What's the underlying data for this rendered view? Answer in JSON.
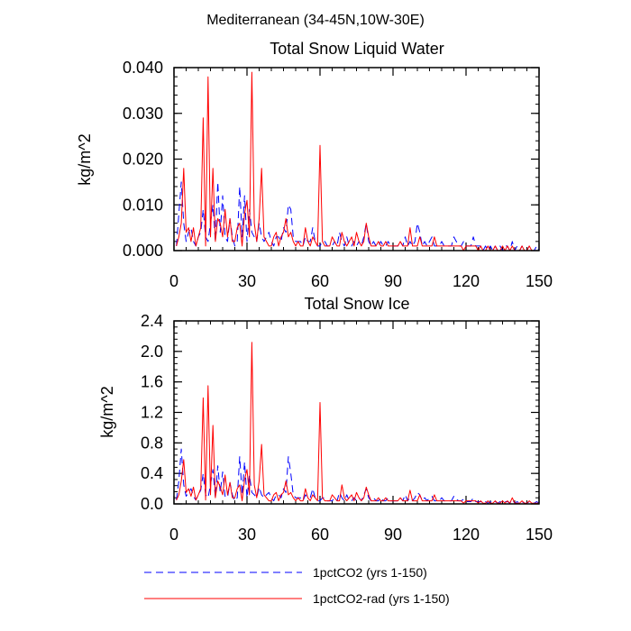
{
  "figure": {
    "supertitle": "Mediterranean (34-45N,10W-30E)"
  },
  "legend": {
    "items": [
      {
        "label": "1pctCO2 (yrs 1-150)",
        "color": "#0000ff",
        "style": "dashed"
      },
      {
        "label": "1pctCO2-rad (yrs 1-150)",
        "color": "#ff0000",
        "style": "solid"
      }
    ]
  },
  "chart_data": [
    {
      "type": "line",
      "title": "Total Snow Liquid Water",
      "xlabel": "",
      "ylabel": "kg/m^2",
      "xlim": [
        0,
        150
      ],
      "ylim": [
        0,
        0.04
      ],
      "xticks": [
        0,
        30,
        60,
        90,
        120,
        150
      ],
      "xtick_labels": [
        "0",
        "30",
        "60",
        "90",
        "120",
        "150"
      ],
      "yticks": [
        0,
        0.01,
        0.02,
        0.03,
        0.04
      ],
      "ytick_labels": [
        "0.000",
        "0.010",
        "0.020",
        "0.030",
        "0.040"
      ],
      "grid": false,
      "x": [
        1,
        2,
        3,
        4,
        5,
        6,
        7,
        8,
        9,
        10,
        11,
        12,
        13,
        14,
        15,
        16,
        17,
        18,
        19,
        20,
        21,
        22,
        23,
        24,
        25,
        26,
        27,
        28,
        29,
        30,
        31,
        32,
        33,
        34,
        35,
        36,
        37,
        38,
        39,
        40,
        41,
        42,
        43,
        44,
        45,
        46,
        47,
        48,
        49,
        50,
        51,
        52,
        53,
        54,
        55,
        56,
        57,
        58,
        59,
        60,
        61,
        62,
        63,
        64,
        65,
        66,
        67,
        68,
        69,
        70,
        71,
        72,
        73,
        74,
        75,
        76,
        77,
        78,
        79,
        80,
        81,
        82,
        83,
        84,
        85,
        86,
        87,
        88,
        89,
        90,
        91,
        92,
        93,
        94,
        95,
        96,
        97,
        98,
        99,
        100,
        101,
        102,
        103,
        104,
        105,
        106,
        107,
        108,
        109,
        110,
        111,
        112,
        113,
        114,
        115,
        116,
        117,
        118,
        119,
        120,
        121,
        122,
        123,
        124,
        125,
        126,
        127,
        128,
        129,
        130,
        131,
        132,
        133,
        134,
        135,
        136,
        137,
        138,
        139,
        140,
        141,
        142,
        143,
        144,
        145,
        146,
        147,
        148,
        149,
        150
      ],
      "series": [
        {
          "name": "1pctCO2 (yrs 1-150)",
          "color": "#0000ff",
          "dash": "8,5",
          "values": [
            0.001,
            0.008,
            0.015,
            0.006,
            0.002,
            0.004,
            0.005,
            0.002,
            0.001,
            0.003,
            0.004,
            0.009,
            0.003,
            0.002,
            0.006,
            0.01,
            0.002,
            0.015,
            0.004,
            0.012,
            0.003,
            0.002,
            0.007,
            0.003,
            0.001,
            0.002,
            0.014,
            0.003,
            0.012,
            0.002,
            0.009,
            0.004,
            0.003,
            0.002,
            0.006,
            0.003,
            0.002,
            0.003,
            0.004,
            0.002,
            0.001,
            0.003,
            0.003,
            0.002,
            0.005,
            0.004,
            0.01,
            0.009,
            0.003,
            0.002,
            0.002,
            0.002,
            0.001,
            0.003,
            0.002,
            0.002,
            0.005,
            0.002,
            0.001,
            0.001,
            0.002,
            0.002,
            0.001,
            0.001,
            0.001,
            0.002,
            0.001,
            0.004,
            0.002,
            0.001,
            0.003,
            0.001,
            0.001,
            0.002,
            0.001,
            0.002,
            0.001,
            0.003,
            0.006,
            0.002,
            0.001,
            0.002,
            0.001,
            0.001,
            0.002,
            0.001,
            0.001,
            0.002,
            0.001,
            0.001,
            0.001,
            0.001,
            0.002,
            0.001,
            0.003,
            0.001,
            0.002,
            0.001,
            0.002,
            0.006,
            0.004,
            0.001,
            0.002,
            0.001,
            0.002,
            0.003,
            0.001,
            0.001,
            0.001,
            0.002,
            0.001,
            0.001,
            0.001,
            0.001,
            0.003,
            0.002,
            0.001,
            0.001,
            0.002,
            0.001,
            0.001,
            0.001,
            0.003,
            0.001,
            0.001,
            0.001,
            0.0,
            0.001,
            0.0,
            0.001,
            0.0,
            0.001,
            0.0,
            0.001,
            0.0,
            0.001,
            0.001,
            0.0,
            0.002,
            0.0,
            0.001,
            0.0,
            0.001,
            0.0,
            0.0,
            0.001,
            0.0,
            0.0,
            0.001,
            0.0
          ]
        },
        {
          "name": "1pctCO2-rad (yrs 1-150)",
          "color": "#ff0000",
          "dash": "",
          "values": [
            0.001,
            0.003,
            0.006,
            0.018,
            0.004,
            0.005,
            0.002,
            0.005,
            0.001,
            0.003,
            0.005,
            0.029,
            0.001,
            0.038,
            0.003,
            0.018,
            0.002,
            0.007,
            0.006,
            0.003,
            0.009,
            0.003,
            0.007,
            0.002,
            0.002,
            0.005,
            0.006,
            0.001,
            0.008,
            0.011,
            0.003,
            0.039,
            0.006,
            0.002,
            0.007,
            0.018,
            0.003,
            0.002,
            0.001,
            0.001,
            0.003,
            0.004,
            0.001,
            0.003,
            0.004,
            0.007,
            0.003,
            0.004,
            0.002,
            0.001,
            0.002,
            0.001,
            0.001,
            0.005,
            0.002,
            0.001,
            0.003,
            0.002,
            0.001,
            0.023,
            0.002,
            0.001,
            0.001,
            0.001,
            0.003,
            0.002,
            0.001,
            0.001,
            0.004,
            0.002,
            0.001,
            0.002,
            0.003,
            0.001,
            0.004,
            0.002,
            0.001,
            0.002,
            0.006,
            0.003,
            0.001,
            0.001,
            0.001,
            0.002,
            0.001,
            0.001,
            0.002,
            0.001,
            0.001,
            0.001,
            0.001,
            0.001,
            0.002,
            0.001,
            0.001,
            0.001,
            0.005,
            0.001,
            0.001,
            0.001,
            0.003,
            0.001,
            0.001,
            0.001,
            0.001,
            0.001,
            0.003,
            0.001,
            0.001,
            0.001,
            0.001,
            0.001,
            0.001,
            0.001,
            0.001,
            0.001,
            0.001,
            0.001,
            0.0,
            0.001,
            0.001,
            0.001,
            0.001,
            0.001,
            0.0,
            0.001,
            0.0,
            0.0,
            0.001,
            0.0,
            0.0,
            0.001,
            0.0,
            0.0,
            0.001,
            0.0,
            0.001,
            0.0,
            0.001,
            0.0,
            0.0,
            0.0,
            0.001,
            0.0,
            0.0,
            0.001,
            0.0,
            0.0,
            0.0,
            0.0
          ]
        }
      ]
    },
    {
      "type": "line",
      "title": "Total Snow Ice",
      "xlabel": "",
      "ylabel": "kg/m^2",
      "xlim": [
        0,
        150
      ],
      "ylim": [
        0,
        2.4
      ],
      "xticks": [
        0,
        30,
        60,
        90,
        120,
        150
      ],
      "xtick_labels": [
        "0",
        "30",
        "60",
        "90",
        "120",
        "150"
      ],
      "yticks": [
        0,
        0.4,
        0.8,
        1.2,
        1.6,
        2.0,
        2.4
      ],
      "ytick_labels": [
        "0.0",
        "0.4",
        "0.8",
        "1.2",
        "1.6",
        "2.0",
        "2.4"
      ],
      "grid": false,
      "x": [
        1,
        2,
        3,
        4,
        5,
        6,
        7,
        8,
        9,
        10,
        11,
        12,
        13,
        14,
        15,
        16,
        17,
        18,
        19,
        20,
        21,
        22,
        23,
        24,
        25,
        26,
        27,
        28,
        29,
        30,
        31,
        32,
        33,
        34,
        35,
        36,
        37,
        38,
        39,
        40,
        41,
        42,
        43,
        44,
        45,
        46,
        47,
        48,
        49,
        50,
        51,
        52,
        53,
        54,
        55,
        56,
        57,
        58,
        59,
        60,
        61,
        62,
        63,
        64,
        65,
        66,
        67,
        68,
        69,
        70,
        71,
        72,
        73,
        74,
        75,
        76,
        77,
        78,
        79,
        80,
        81,
        82,
        83,
        84,
        85,
        86,
        87,
        88,
        89,
        90,
        91,
        92,
        93,
        94,
        95,
        96,
        97,
        98,
        99,
        100,
        101,
        102,
        103,
        104,
        105,
        106,
        107,
        108,
        109,
        110,
        111,
        112,
        113,
        114,
        115,
        116,
        117,
        118,
        119,
        120,
        121,
        122,
        123,
        124,
        125,
        126,
        127,
        128,
        129,
        130,
        131,
        132,
        133,
        134,
        135,
        136,
        137,
        138,
        139,
        140,
        141,
        142,
        143,
        144,
        145,
        146,
        147,
        148,
        149,
        150
      ],
      "series": [
        {
          "name": "1pctCO2 (yrs 1-150)",
          "color": "#0000ff",
          "dash": "8,5",
          "values": [
            0.05,
            0.3,
            0.72,
            0.25,
            0.1,
            0.15,
            0.2,
            0.1,
            0.05,
            0.12,
            0.18,
            0.4,
            0.12,
            0.08,
            0.25,
            0.45,
            0.08,
            0.5,
            0.15,
            0.42,
            0.1,
            0.08,
            0.28,
            0.12,
            0.04,
            0.08,
            0.62,
            0.12,
            0.55,
            0.08,
            0.38,
            0.15,
            0.12,
            0.08,
            0.22,
            0.12,
            0.08,
            0.12,
            0.15,
            0.08,
            0.04,
            0.12,
            0.12,
            0.08,
            0.2,
            0.15,
            0.62,
            0.4,
            0.12,
            0.08,
            0.08,
            0.08,
            0.04,
            0.12,
            0.08,
            0.08,
            0.2,
            0.08,
            0.04,
            0.04,
            0.08,
            0.08,
            0.04,
            0.04,
            0.04,
            0.08,
            0.04,
            0.15,
            0.08,
            0.04,
            0.12,
            0.04,
            0.04,
            0.08,
            0.04,
            0.08,
            0.04,
            0.12,
            0.2,
            0.08,
            0.04,
            0.08,
            0.04,
            0.04,
            0.08,
            0.04,
            0.04,
            0.08,
            0.04,
            0.04,
            0.04,
            0.04,
            0.08,
            0.04,
            0.12,
            0.04,
            0.08,
            0.04,
            0.08,
            0.15,
            0.12,
            0.04,
            0.08,
            0.04,
            0.08,
            0.1,
            0.04,
            0.04,
            0.04,
            0.08,
            0.04,
            0.04,
            0.04,
            0.04,
            0.1,
            0.06,
            0.04,
            0.04,
            0.06,
            0.03,
            0.03,
            0.03,
            0.08,
            0.03,
            0.03,
            0.03,
            0.01,
            0.03,
            0.01,
            0.03,
            0.01,
            0.03,
            0.01,
            0.03,
            0.01,
            0.03,
            0.03,
            0.01,
            0.06,
            0.01,
            0.03,
            0.01,
            0.03,
            0.01,
            0.01,
            0.03,
            0.01,
            0.01,
            0.03,
            0.01
          ]
        },
        {
          "name": "1pctCO2-rad (yrs 1-150)",
          "color": "#ff0000",
          "dash": "",
          "values": [
            0.05,
            0.12,
            0.3,
            0.58,
            0.15,
            0.2,
            0.1,
            0.22,
            0.05,
            0.12,
            0.2,
            1.39,
            0.05,
            1.55,
            0.12,
            1.03,
            0.08,
            0.3,
            0.22,
            0.12,
            0.38,
            0.12,
            0.28,
            0.08,
            0.08,
            0.2,
            0.25,
            0.04,
            0.32,
            0.45,
            0.12,
            2.12,
            0.25,
            0.08,
            0.3,
            0.78,
            0.12,
            0.08,
            0.04,
            0.04,
            0.12,
            0.15,
            0.04,
            0.12,
            0.15,
            0.3,
            0.12,
            0.15,
            0.08,
            0.04,
            0.08,
            0.04,
            0.04,
            0.2,
            0.08,
            0.04,
            0.12,
            0.08,
            0.04,
            1.33,
            0.08,
            0.04,
            0.04,
            0.04,
            0.12,
            0.08,
            0.04,
            0.04,
            0.25,
            0.08,
            0.04,
            0.08,
            0.12,
            0.04,
            0.15,
            0.08,
            0.04,
            0.08,
            0.22,
            0.12,
            0.04,
            0.04,
            0.04,
            0.08,
            0.04,
            0.04,
            0.08,
            0.04,
            0.04,
            0.04,
            0.04,
            0.04,
            0.08,
            0.04,
            0.04,
            0.04,
            0.18,
            0.04,
            0.04,
            0.04,
            0.12,
            0.04,
            0.04,
            0.04,
            0.04,
            0.04,
            0.12,
            0.04,
            0.04,
            0.04,
            0.04,
            0.04,
            0.04,
            0.04,
            0.04,
            0.04,
            0.04,
            0.04,
            0.01,
            0.04,
            0.04,
            0.04,
            0.04,
            0.04,
            0.01,
            0.04,
            0.01,
            0.01,
            0.04,
            0.01,
            0.01,
            0.04,
            0.01,
            0.01,
            0.04,
            0.01,
            0.04,
            0.01,
            0.08,
            0.01,
            0.01,
            0.01,
            0.04,
            0.01,
            0.01,
            0.04,
            0.01,
            0.01,
            0.01,
            0.01
          ]
        }
      ]
    }
  ]
}
